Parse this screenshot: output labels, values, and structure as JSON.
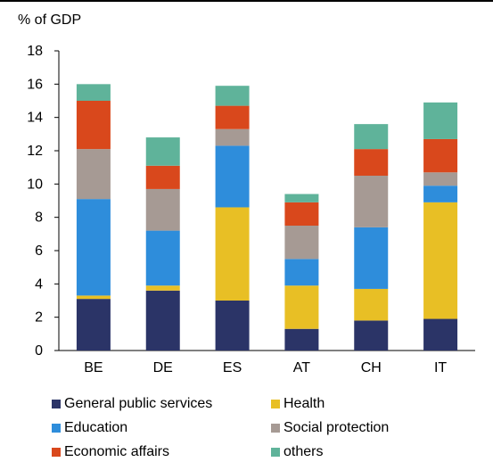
{
  "chart_data": {
    "type": "bar",
    "stacked": true,
    "ylabel": "% of GDP",
    "ylim": [
      0,
      18
    ],
    "yticks": [
      0,
      2,
      4,
      6,
      8,
      10,
      12,
      14,
      16,
      18
    ],
    "categories": [
      "BE",
      "DE",
      "ES",
      "AT",
      "CH",
      "IT"
    ],
    "series": [
      {
        "name": "General public services",
        "color": "#2b3467",
        "values": [
          3.1,
          3.6,
          3.0,
          1.3,
          1.8,
          1.9
        ]
      },
      {
        "name": "Health",
        "color": "#e8bf25",
        "values": [
          0.2,
          0.3,
          5.6,
          2.6,
          1.9,
          7.0
        ]
      },
      {
        "name": "Education",
        "color": "#2e8ddb",
        "values": [
          5.8,
          3.3,
          3.7,
          1.6,
          3.7,
          1.0
        ]
      },
      {
        "name": "Social protection",
        "color": "#a69a94",
        "values": [
          3.0,
          2.5,
          1.0,
          2.0,
          3.1,
          0.8
        ]
      },
      {
        "name": "Economic affairs",
        "color": "#d9481c",
        "values": [
          2.9,
          1.4,
          1.4,
          1.4,
          1.6,
          2.0
        ]
      },
      {
        "name": "others",
        "color": "#5fb39a",
        "values": [
          1.0,
          1.7,
          1.2,
          0.5,
          1.5,
          2.2
        ]
      }
    ],
    "legend_position": "bottom",
    "grid": false
  }
}
